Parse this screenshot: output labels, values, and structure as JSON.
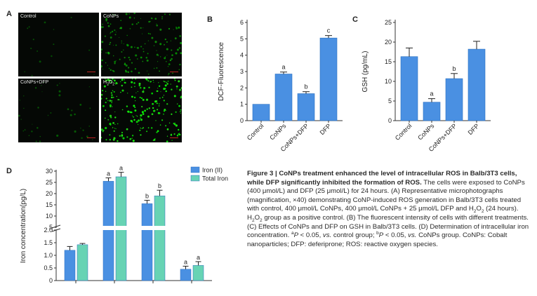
{
  "panels": {
    "a": {
      "letter": "A",
      "images": [
        {
          "label": "Control",
          "dots": 15,
          "brightness": 0.25
        },
        {
          "label": "CoNPs",
          "dots": 160,
          "brightness": 0.55
        },
        {
          "label": "CoNPs+DFP",
          "dots": 40,
          "brightness": 0.3
        },
        {
          "label": "H2O2",
          "dots": 240,
          "brightness": 0.95
        }
      ]
    },
    "b": {
      "letter": "B"
    },
    "c": {
      "letter": "C"
    },
    "d": {
      "letter": "D"
    }
  },
  "chart_data": [
    {
      "id": "B",
      "type": "bar",
      "categories": [
        "Control",
        "CoNPs",
        "CoNPs+DFP",
        "DFP"
      ],
      "values": [
        1.0,
        2.85,
        1.65,
        5.05
      ],
      "errors": [
        0.0,
        0.12,
        0.12,
        0.15
      ],
      "sig": [
        "",
        "a",
        "b",
        "c"
      ],
      "ylabel": "DCF-Fluorescence",
      "ylim": [
        0,
        6
      ],
      "yticks": [
        0,
        1,
        2,
        3,
        4,
        5,
        6
      ],
      "color": "#4a90e2"
    },
    {
      "id": "C",
      "type": "bar",
      "categories": [
        "Control",
        "CoNPs",
        "CoNPs+DFP",
        "DFP"
      ],
      "values": [
        16.3,
        4.7,
        10.7,
        18.2
      ],
      "errors": [
        2.2,
        0.9,
        1.3,
        2.0
      ],
      "sig": [
        "",
        "a",
        "b",
        ""
      ],
      "ylabel": "GSH (pg/mL)",
      "ylim": [
        0,
        25
      ],
      "yticks": [
        0,
        5,
        10,
        15,
        20,
        25
      ],
      "color": "#4a90e2"
    },
    {
      "id": "D",
      "type": "bar",
      "groups": 4,
      "series": [
        {
          "name": "Iron (II)",
          "values": [
            1.2,
            25.5,
            15.5,
            0.45
          ],
          "errors": [
            0.15,
            1.5,
            1.5,
            0.12
          ],
          "sig": [
            "",
            "a",
            "b",
            "a"
          ],
          "color": "#4a90e2"
        },
        {
          "name": "Total Iron",
          "values": [
            1.42,
            27.5,
            19.0,
            0.6
          ],
          "errors": [
            0.05,
            2.0,
            2.5,
            0.15
          ],
          "sig": [
            "",
            "a",
            "b",
            "a"
          ],
          "color": "#67d3b4"
        }
      ],
      "ylabel": "Iron concentration(pg/L)",
      "axis_break": [
        2.0,
        5.0
      ],
      "yticks_low": [
        "0",
        "0.5",
        "1.0",
        "1.5",
        "2.0"
      ],
      "yticks_high": [
        "5",
        "10",
        "15",
        "20",
        "25",
        "30"
      ],
      "legend": "top-right"
    }
  ],
  "caption": {
    "title": "Figure 3 | CoNPs treatment enhanced the level of intracellular ROS in Balb/3T3 cells, while DFP significantly inhibited the formation of ROS.",
    "body_1": "The cells were exposed to CoNPs (400 μmol/L) and DFP (25 μmol/L) for 24 hours. (A) Representative microphotographs (magnification, ×40) demonstrating CoNP-induced ROS generation in Balb/3T3 cells treated with control, 400 μmol/L CoNPs, 400 μmol/L CoNPs + 25 μmol/L DFP and H",
    "h2o2_sub_1": "2",
    "h2o2_o": "O",
    "h2o2_sub_2": "2",
    "body_2": " (24 hours). H",
    "body_2b": "O",
    "body_3": " group as a positive control. (B) The fluorescent intensity of cells with different treatments. (C) Effects of CoNPs and DFP on GSH in Balb/3T3 cells. (D) Determination of intracellular iron concentration. ",
    "sup_a": "a",
    "p1": "P",
    "p1_rest": " < 0.05, ",
    "vs1": "vs.",
    "control_text": " control group; ",
    "sup_b": "b",
    "p2": "P",
    "p2_rest": " < 0.05, ",
    "vs2": "vs.",
    "body_4": " CoNPs group. CoNPs: Cobalt nanoparticles; DFP: deferiprone; ROS: reactive oxygen species."
  }
}
